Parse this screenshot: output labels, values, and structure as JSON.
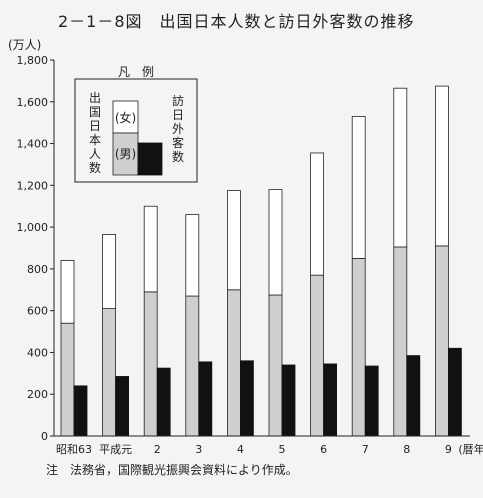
{
  "chart_data": {
    "type": "bar",
    "title": "2－1－8図　出国日本人数と訪日外客数の推移",
    "ylabel": "(万人)",
    "ylim": [
      0,
      1800
    ],
    "yticks": [
      "0",
      "200",
      "400",
      "600",
      "800",
      "1,000",
      "1,200",
      "1,400",
      "1,600",
      "1,800"
    ],
    "categories": [
      "昭和63",
      "平成元",
      "2",
      "3",
      "4",
      "5",
      "6",
      "7",
      "8",
      "9"
    ],
    "x_unit": "(暦年)",
    "series": [
      {
        "name": "出国日本人数",
        "stacked": [
          {
            "name": "男",
            "values": [
              540,
              610,
              690,
              670,
              700,
              675,
              770,
              850,
              905,
              910
            ]
          },
          {
            "name": "女",
            "values": [
              300,
              355,
              410,
              390,
              475,
              505,
              585,
              680,
              760,
              765
            ]
          }
        ],
        "totals": [
          840,
          965,
          1100,
          1060,
          1175,
          1180,
          1355,
          1530,
          1665,
          1675
        ]
      },
      {
        "name": "訪日外客数",
        "values": [
          240,
          285,
          325,
          355,
          360,
          340,
          345,
          335,
          385,
          420
        ]
      }
    ],
    "legend": {
      "title": "凡　例",
      "left_label": "出国日本人数",
      "right_label": "訪日外客数",
      "female_label": "(女)",
      "male_label": "(男)",
      "placement": "top-left"
    },
    "colors": {
      "female": "#ffffff",
      "male": "#cfcfcf",
      "foreign": "#111111"
    }
  },
  "note": "注　法務省，国際観光振興会資料により作成。"
}
